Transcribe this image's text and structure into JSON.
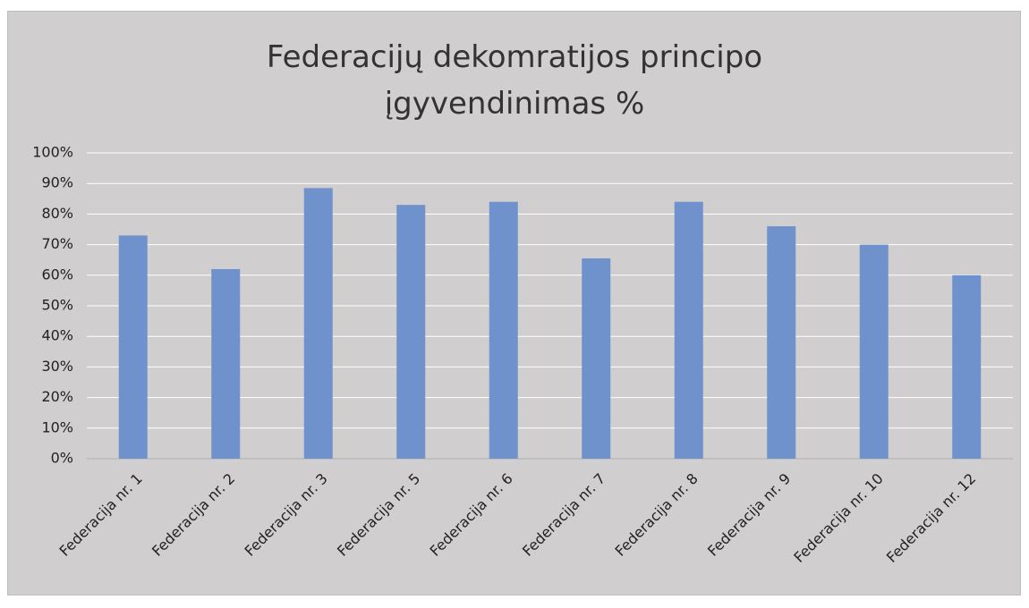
{
  "chart_data": {
    "type": "bar",
    "title": "Federacijų dekomratijos principo įgyvendinimas %",
    "categories": [
      "Federacija nr. 1",
      "Federacija nr. 2",
      "Federacija nr. 3",
      "Federacija nr. 5",
      "Federacija nr. 6",
      "Federacija nr. 7",
      "Federacija nr. 8",
      "Federacija nr. 9",
      "Federacija nr. 10",
      "Federacija nr. 12"
    ],
    "values": [
      73,
      62,
      88.5,
      83,
      84,
      65.5,
      84,
      76,
      70,
      60
    ],
    "color": "#7092cc",
    "ylim": [
      0,
      100
    ],
    "yticks": [
      {
        "value": 0,
        "label": "0%"
      },
      {
        "value": 10,
        "label": "10%"
      },
      {
        "value": 20,
        "label": "20%"
      },
      {
        "value": 30,
        "label": "30%"
      },
      {
        "value": 40,
        "label": "40%"
      },
      {
        "value": 50,
        "label": "50%"
      },
      {
        "value": 60,
        "label": "60%"
      },
      {
        "value": 70,
        "label": "70%"
      },
      {
        "value": 80,
        "label": "80%"
      },
      {
        "value": 90,
        "label": "90%"
      },
      {
        "value": 100,
        "label": "100%"
      }
    ],
    "grid": true
  }
}
